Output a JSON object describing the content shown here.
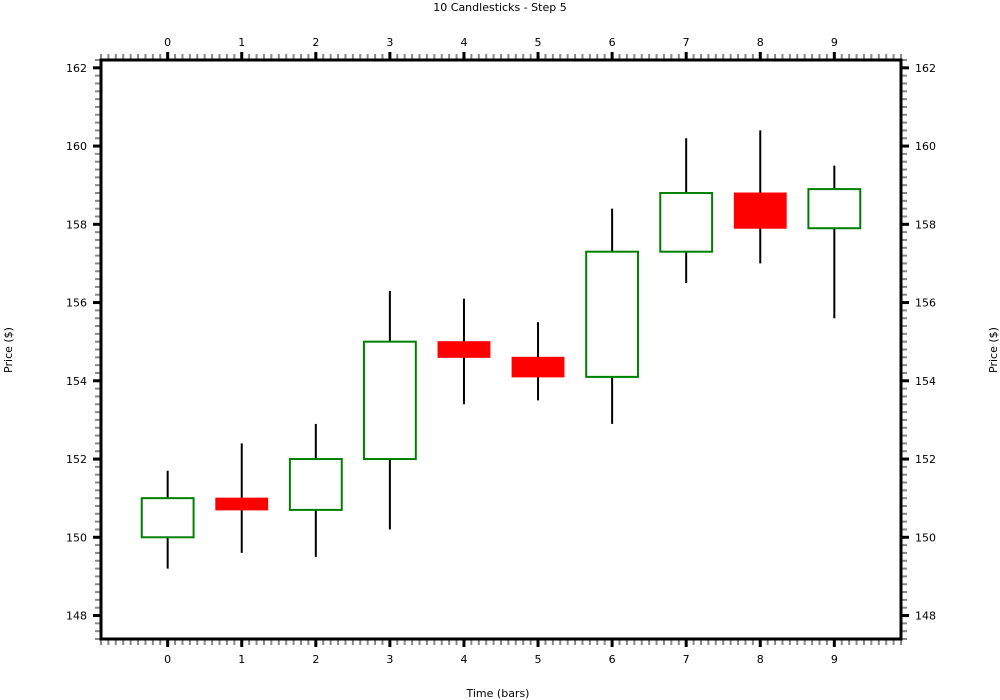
{
  "chart_data": {
    "type": "candlestick",
    "title": "10 Candlesticks - Step 5",
    "xlabel": "Time (bars)",
    "ylabel_left": "Price ($)",
    "ylabel_right": "Price ($)",
    "x_ticks": [
      0,
      1,
      2,
      3,
      4,
      5,
      6,
      7,
      8,
      9
    ],
    "y_ticks": [
      148,
      150,
      152,
      154,
      156,
      158,
      160,
      162
    ],
    "xlim": [
      -0.9,
      9.9
    ],
    "ylim": [
      147.4,
      162.2
    ],
    "grid": false,
    "colors": {
      "up": "#008000",
      "down": "#ff0000",
      "wick": "#000000",
      "axis": "#000000"
    },
    "candles": [
      {
        "x": 0,
        "open": 150.0,
        "high": 151.7,
        "low": 149.2,
        "close": 151.0
      },
      {
        "x": 1,
        "open": 151.0,
        "high": 152.4,
        "low": 149.6,
        "close": 150.7
      },
      {
        "x": 2,
        "open": 150.7,
        "high": 152.9,
        "low": 149.5,
        "close": 152.0
      },
      {
        "x": 3,
        "open": 152.0,
        "high": 156.3,
        "low": 150.2,
        "close": 155.0
      },
      {
        "x": 4,
        "open": 155.0,
        "high": 156.1,
        "low": 153.4,
        "close": 154.6
      },
      {
        "x": 5,
        "open": 154.6,
        "high": 155.5,
        "low": 153.5,
        "close": 154.1
      },
      {
        "x": 6,
        "open": 154.1,
        "high": 158.4,
        "low": 152.9,
        "close": 157.3
      },
      {
        "x": 7,
        "open": 157.3,
        "high": 160.2,
        "low": 156.5,
        "close": 158.8
      },
      {
        "x": 8,
        "open": 158.8,
        "high": 160.4,
        "low": 157.0,
        "close": 157.9
      },
      {
        "x": 9,
        "open": 157.9,
        "high": 159.5,
        "low": 155.6,
        "close": 158.9
      }
    ]
  }
}
